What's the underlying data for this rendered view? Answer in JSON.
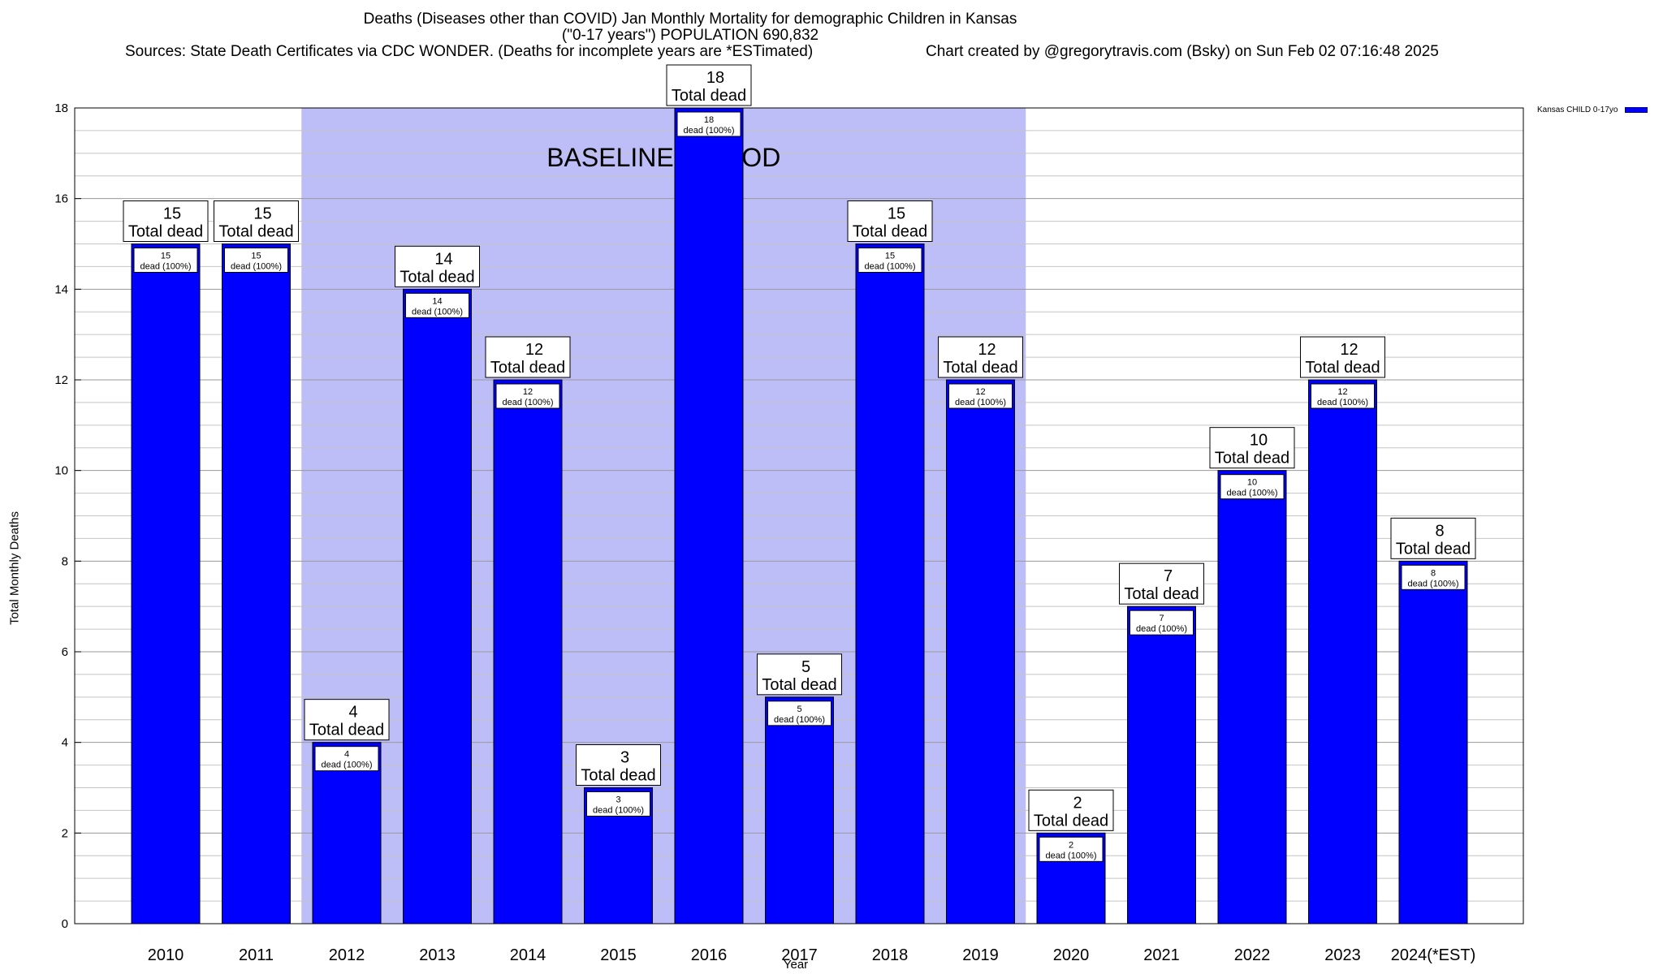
{
  "chart_data": {
    "type": "bar",
    "title": "Deaths (Diseases other than COVID) Jan Monthly Mortality for demographic Children in Kansas",
    "subtitle": "(\"0-17 years\") POPULATION 690,832",
    "source_note": "Sources: State Death Certificates via CDC WONDER. (Deaths for incomplete years are *ESTimated)",
    "credit_note": "Chart created by @gregorytravis.com (Bsky) on Sun Feb 02 07:16:48 2025",
    "xlabel": "Year",
    "ylabel": "Total Monthly Deaths",
    "ylim": [
      0,
      18
    ],
    "yticks": [
      "0",
      "2",
      "4",
      "6",
      "8",
      "10",
      "12",
      "14",
      "16",
      "18"
    ],
    "categories": [
      "2010",
      "2011",
      "2012",
      "2013",
      "2014",
      "2015",
      "2016",
      "2017",
      "2018",
      "2019",
      "2020",
      "2021",
      "2022",
      "2023",
      "2024(*EST)"
    ],
    "series": [
      {
        "name": "Kansas CHILD 0-17yo",
        "color": "#0000ff",
        "values": [
          15,
          15,
          4,
          14,
          12,
          3,
          18,
          5,
          15,
          12,
          2,
          7,
          10,
          12,
          8
        ]
      }
    ],
    "top_labels": [
      "15",
      "15",
      "4",
      "14",
      "12",
      "3",
      "18",
      "5",
      "15",
      "12",
      "2",
      "7",
      "10",
      "12",
      "8"
    ],
    "total_label": "Total dead",
    "inner_labels": [
      "15",
      "15",
      "4",
      "14",
      "12",
      "3",
      "18",
      "5",
      "15",
      "12",
      "2",
      "7",
      "10",
      "12",
      "8"
    ],
    "inner_sublabel": "dead (100%)",
    "baseline": {
      "label": "BASELINE PERIOD",
      "from": "2012",
      "to": "2019",
      "color": "#bdbdf7"
    },
    "grid": true,
    "legend_position": "top-right"
  }
}
